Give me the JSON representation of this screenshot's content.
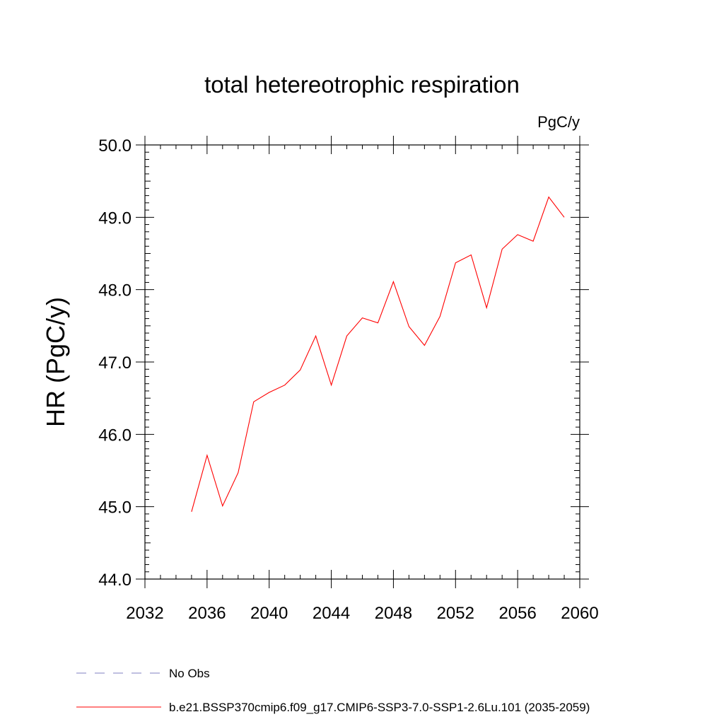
{
  "chart_data": {
    "type": "line",
    "title": "total hetereotrophic respiration",
    "units_label": "PgC/y",
    "ylabel": "HR  (PgC/y)",
    "xlabel": "",
    "xlim": [
      2032,
      2060
    ],
    "ylim": [
      44.0,
      50.0
    ],
    "x_ticks": [
      2032,
      2036,
      2040,
      2044,
      2048,
      2052,
      2056,
      2060
    ],
    "y_ticks": [
      "44.0",
      "45.0",
      "46.0",
      "47.0",
      "48.0",
      "49.0",
      "50.0"
    ],
    "series": [
      {
        "name": "b.e21.BSSP370cmip6.f09_g17.CMIP6-SSP3-7.0-SSP1-2.6Lu.101 (2035-2059)",
        "color": "#ff0000",
        "x": [
          2035,
          2036,
          2037,
          2038,
          2039,
          2040,
          2041,
          2042,
          2043,
          2044,
          2045,
          2046,
          2047,
          2048,
          2049,
          2050,
          2051,
          2052,
          2053,
          2054,
          2055,
          2056,
          2057,
          2058,
          2059
        ],
        "y": [
          44.93,
          45.71,
          45.01,
          45.47,
          46.45,
          46.58,
          46.68,
          46.89,
          47.36,
          46.68,
          47.36,
          47.61,
          47.54,
          48.11,
          47.49,
          47.23,
          47.63,
          48.37,
          48.48,
          47.75,
          48.56,
          48.76,
          48.67,
          49.28,
          49.0
        ]
      }
    ],
    "legend": [
      {
        "label": "No Obs",
        "style": "dashed",
        "color": "#8080c0"
      },
      {
        "label": "b.e21.BSSP370cmip6.f09_g17.CMIP6-SSP3-7.0-SSP1-2.6Lu.101 (2035-2059)",
        "style": "solid",
        "color": "#ff0000"
      }
    ]
  }
}
